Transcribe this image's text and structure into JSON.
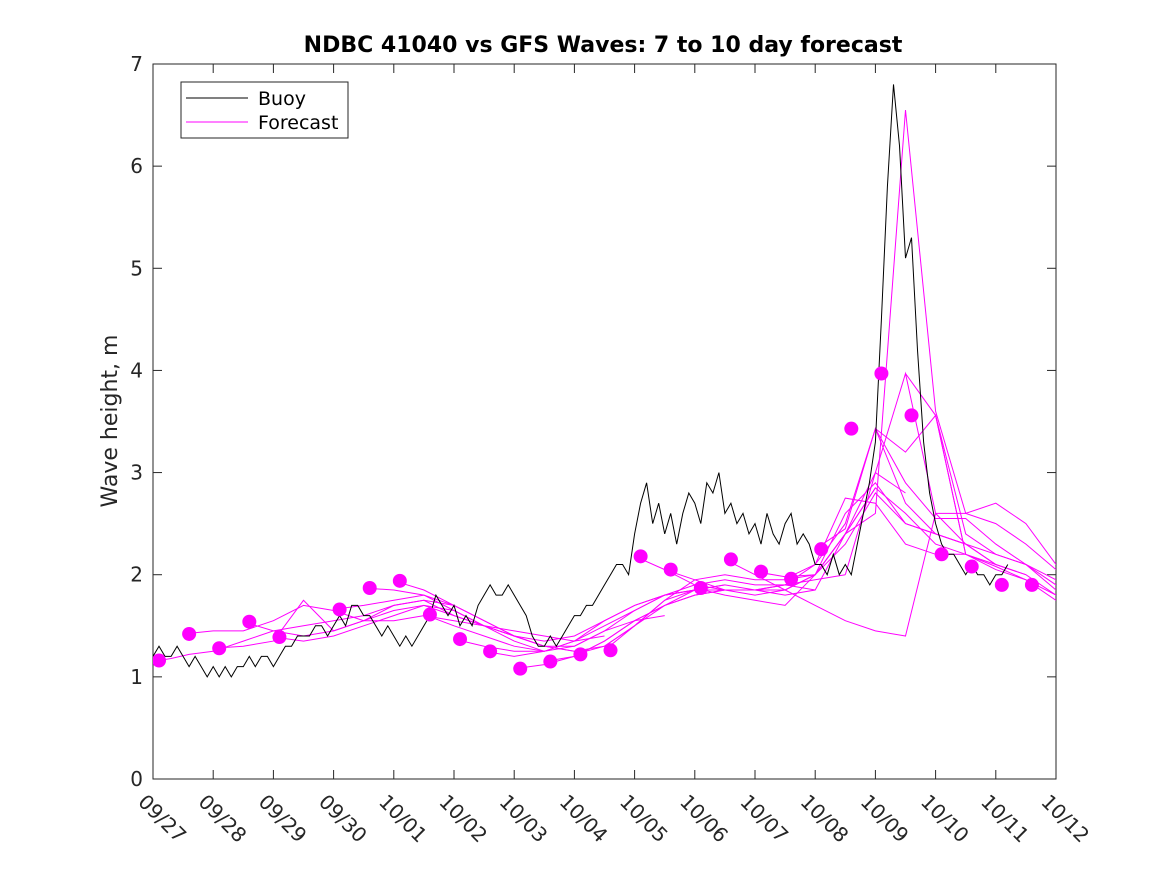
{
  "chart_data": {
    "type": "line",
    "title": "NDBC 41040 vs GFS Waves: 7 to 10 day forecast",
    "xlabel": "",
    "ylabel": "Wave height, m",
    "ylim": [
      0,
      7
    ],
    "xlim": [
      0,
      15
    ],
    "yticks": [
      0,
      1,
      2,
      3,
      4,
      5,
      6,
      7
    ],
    "xtick_labels": [
      "09/27",
      "09/28",
      "09/29",
      "09/30",
      "10/01",
      "10/02",
      "10/03",
      "10/04",
      "10/05",
      "10/06",
      "10/07",
      "10/08",
      "10/09",
      "10/10",
      "10/11",
      "10/12"
    ],
    "legend": {
      "position": "top-left",
      "entries": [
        "Buoy",
        "Forecast"
      ]
    },
    "colors": {
      "buoy": "#000000",
      "forecast": "#ff00ff",
      "axis": "#262626"
    },
    "series": [
      {
        "name": "Buoy",
        "x": [
          0.0,
          0.1,
          0.2,
          0.3,
          0.4,
          0.5,
          0.6,
          0.7,
          0.8,
          0.9,
          1.0,
          1.1,
          1.2,
          1.3,
          1.4,
          1.5,
          1.6,
          1.7,
          1.8,
          1.9,
          2.0,
          2.1,
          2.2,
          2.3,
          2.4,
          2.5,
          2.6,
          2.7,
          2.8,
          2.9,
          3.0,
          3.1,
          3.2,
          3.3,
          3.4,
          3.5,
          3.6,
          3.7,
          3.8,
          3.9,
          4.0,
          4.1,
          4.2,
          4.3,
          4.4,
          4.5,
          4.6,
          4.7,
          4.8,
          4.9,
          5.0,
          5.1,
          5.2,
          5.3,
          5.4,
          5.5,
          5.6,
          5.7,
          5.8,
          5.9,
          6.0,
          6.1,
          6.2,
          6.3,
          6.4,
          6.5,
          6.6,
          6.7,
          6.8,
          6.9,
          7.0,
          7.1,
          7.2,
          7.3,
          7.4,
          7.5,
          7.6,
          7.7,
          7.8,
          7.9,
          8.0,
          8.1,
          8.2,
          8.3,
          8.4,
          8.5,
          8.6,
          8.7,
          8.8,
          8.9,
          9.0,
          9.1,
          9.2,
          9.3,
          9.4,
          9.5,
          9.6,
          9.7,
          9.8,
          9.9,
          10.0,
          10.1,
          10.2,
          10.3,
          10.4,
          10.5,
          10.6,
          10.7,
          10.8,
          10.9,
          11.0,
          11.1,
          11.2,
          11.3,
          11.4,
          11.5,
          11.6,
          11.7,
          11.8,
          11.9,
          12.0,
          12.1,
          12.2,
          12.3,
          12.4,
          12.5,
          12.6,
          12.7,
          12.8,
          12.9,
          13.0,
          13.1,
          13.2,
          13.3,
          13.4,
          13.5,
          13.6,
          13.7,
          13.8,
          13.9,
          14.0,
          14.1,
          14.2
        ],
        "y": [
          1.2,
          1.3,
          1.2,
          1.2,
          1.3,
          1.2,
          1.1,
          1.2,
          1.1,
          1.0,
          1.1,
          1.0,
          1.1,
          1.0,
          1.1,
          1.1,
          1.2,
          1.1,
          1.2,
          1.2,
          1.1,
          1.2,
          1.3,
          1.3,
          1.4,
          1.4,
          1.4,
          1.5,
          1.5,
          1.4,
          1.5,
          1.6,
          1.5,
          1.7,
          1.7,
          1.6,
          1.6,
          1.5,
          1.4,
          1.5,
          1.4,
          1.3,
          1.4,
          1.3,
          1.4,
          1.5,
          1.6,
          1.8,
          1.7,
          1.6,
          1.7,
          1.5,
          1.6,
          1.5,
          1.7,
          1.8,
          1.9,
          1.8,
          1.8,
          1.9,
          1.8,
          1.7,
          1.6,
          1.4,
          1.3,
          1.3,
          1.4,
          1.3,
          1.4,
          1.5,
          1.6,
          1.6,
          1.7,
          1.7,
          1.8,
          1.9,
          2.0,
          2.1,
          2.1,
          2.0,
          2.4,
          2.7,
          2.9,
          2.5,
          2.7,
          2.4,
          2.6,
          2.3,
          2.6,
          2.8,
          2.7,
          2.5,
          2.9,
          2.8,
          3.0,
          2.6,
          2.7,
          2.5,
          2.6,
          2.4,
          2.5,
          2.3,
          2.6,
          2.4,
          2.3,
          2.5,
          2.6,
          2.3,
          2.4,
          2.3,
          2.1,
          2.1,
          2.0,
          2.2,
          2.0,
          2.1,
          2.0,
          2.3,
          2.6,
          2.9,
          3.3,
          4.5,
          5.8,
          6.8,
          6.2,
          5.1,
          5.3,
          4.2,
          3.3,
          2.8,
          2.5,
          2.3,
          2.2,
          2.2,
          2.1,
          2.0,
          2.1,
          2.0,
          2.0,
          1.9,
          2.0,
          2.0,
          2.1
        ]
      },
      {
        "name": "Forecast",
        "runs": [
          {
            "x": [
              0.0,
              0.3,
              0.6,
              1.0,
              1.5,
              2.0,
              2.5,
              3.0,
              3.5,
              4.0,
              4.5,
              5.0
            ],
            "y": [
              1.15,
              1.18,
              1.22,
              1.25,
              1.35,
              1.45,
              1.5,
              1.55,
              1.6,
              1.7,
              1.75,
              1.7
            ]
          },
          {
            "x": [
              0.5,
              1.0,
              1.5,
              2.0,
              2.5,
              3.0,
              3.5,
              4.0,
              4.5,
              5.0,
              5.5,
              6.0
            ],
            "y": [
              1.42,
              1.45,
              1.45,
              1.55,
              1.7,
              1.65,
              1.55,
              1.55,
              1.6,
              1.55,
              1.5,
              1.4
            ]
          },
          {
            "x": [
              1.0,
              1.5,
              2.0,
              2.5,
              3.0,
              3.5,
              4.0,
              4.5,
              5.0,
              5.5,
              6.0,
              6.5
            ],
            "y": [
              1.28,
              1.3,
              1.35,
              1.75,
              1.45,
              1.55,
              1.7,
              1.75,
              1.6,
              1.5,
              1.35,
              1.25
            ]
          },
          {
            "x": [
              1.5,
              2.0,
              2.5,
              3.0,
              3.5,
              4.0,
              4.5,
              5.0,
              5.5,
              6.0,
              6.5,
              7.0
            ],
            "y": [
              1.54,
              1.45,
              1.4,
              1.45,
              1.55,
              1.65,
              1.7,
              1.65,
              1.5,
              1.4,
              1.3,
              1.25
            ]
          },
          {
            "x": [
              2.0,
              2.5,
              3.0,
              3.5,
              4.0,
              4.5,
              5.0,
              5.5,
              6.0,
              6.5,
              7.0,
              7.5
            ],
            "y": [
              1.39,
              1.35,
              1.4,
              1.5,
              1.6,
              1.7,
              1.6,
              1.5,
              1.45,
              1.4,
              1.35,
              1.4
            ]
          },
          {
            "x": [
              3.0,
              3.5,
              4.0,
              4.5,
              5.0,
              5.5,
              6.0,
              6.5,
              7.0,
              7.5,
              8.0,
              8.5
            ],
            "y": [
              1.66,
              1.7,
              1.75,
              1.8,
              1.7,
              1.55,
              1.4,
              1.3,
              1.3,
              1.45,
              1.55,
              1.6
            ]
          },
          {
            "x": [
              3.5,
              4.0,
              4.5,
              5.0,
              5.5,
              6.0,
              6.5,
              7.0,
              7.5,
              8.0,
              8.5,
              9.0
            ],
            "y": [
              1.87,
              1.85,
              1.8,
              1.65,
              1.5,
              1.4,
              1.35,
              1.4,
              1.55,
              1.7,
              1.8,
              1.85
            ]
          },
          {
            "x": [
              4.0,
              4.5,
              5.0,
              5.5,
              6.0,
              6.5,
              7.0,
              7.5,
              8.0,
              8.5,
              9.0,
              9.5
            ],
            "y": [
              1.94,
              1.85,
              1.7,
              1.55,
              1.4,
              1.3,
              1.25,
              1.3,
              1.5,
              1.7,
              1.85,
              1.9
            ]
          },
          {
            "x": [
              4.5,
              5.0,
              5.5,
              6.0,
              6.5,
              7.0,
              7.5,
              8.0,
              8.5,
              9.0,
              9.5,
              10.0
            ],
            "y": [
              1.61,
              1.5,
              1.4,
              1.3,
              1.25,
              1.3,
              1.45,
              1.65,
              1.8,
              1.85,
              1.85,
              1.85
            ]
          },
          {
            "x": [
              5.0,
              5.5,
              6.0,
              6.5,
              7.0,
              7.5,
              8.0,
              8.5,
              9.0,
              9.5,
              10.0,
              10.5
            ],
            "y": [
              1.37,
              1.3,
              1.25,
              1.25,
              1.35,
              1.55,
              1.7,
              1.8,
              1.85,
              1.85,
              1.8,
              1.85
            ]
          },
          {
            "x": [
              5.5,
              6.0,
              6.5,
              7.0,
              7.5,
              8.0,
              8.5,
              9.0,
              9.5,
              10.0,
              10.5,
              11.0
            ],
            "y": [
              1.25,
              1.2,
              1.25,
              1.35,
              1.5,
              1.65,
              1.8,
              1.9,
              1.95,
              1.9,
              1.9,
              1.85
            ]
          },
          {
            "x": [
              6.0,
              6.5,
              7.0,
              7.5,
              8.0,
              8.5,
              9.0,
              9.5,
              10.0,
              10.5,
              11.0,
              11.5
            ],
            "y": [
              1.08,
              1.12,
              1.2,
              1.35,
              1.55,
              1.7,
              1.8,
              1.85,
              1.85,
              1.9,
              1.95,
              2.0
            ]
          },
          {
            "x": [
              6.5,
              7.0,
              7.5,
              8.0,
              8.5,
              9.0,
              9.5,
              10.0,
              10.5,
              11.0,
              11.5,
              12.0
            ],
            "y": [
              1.15,
              1.2,
              1.35,
              1.55,
              1.7,
              1.8,
              1.85,
              1.85,
              1.85,
              2.0,
              2.4,
              2.85
            ]
          },
          {
            "x": [
              7.0,
              7.5,
              8.0,
              8.5,
              9.0,
              9.5,
              10.0,
              10.5,
              11.0,
              11.5,
              12.0,
              12.5
            ],
            "y": [
              1.22,
              1.3,
              1.5,
              1.75,
              1.85,
              1.9,
              1.85,
              1.85,
              2.0,
              2.4,
              3.0,
              2.8
            ]
          },
          {
            "x": [
              7.5,
              8.0,
              8.5,
              9.0,
              9.5,
              10.0,
              10.5,
              11.0,
              11.5,
              12.0,
              12.5,
              13.0
            ],
            "y": [
              1.26,
              1.5,
              1.75,
              1.95,
              2.0,
              1.95,
              1.95,
              2.0,
              2.6,
              2.9,
              2.5,
              2.4
            ]
          },
          {
            "x": [
              8.0,
              8.5,
              9.0,
              9.5,
              10.0,
              10.5,
              11.0,
              11.5,
              12.0,
              12.5,
              13.0,
              13.5
            ],
            "y": [
              2.18,
              2.05,
              1.95,
              1.85,
              1.85,
              1.9,
              2.1,
              2.75,
              2.7,
              2.3,
              2.2,
              2.2
            ]
          },
          {
            "x": [
              8.5,
              9.0,
              9.5,
              10.0,
              10.5,
              11.0,
              11.5,
              12.0,
              12.5,
              13.0,
              13.5,
              14.0
            ],
            "y": [
              2.05,
              1.9,
              1.85,
              1.85,
              1.8,
              1.85,
              2.4,
              2.85,
              2.6,
              2.3,
              2.2,
              2.1
            ]
          },
          {
            "x": [
              9.0,
              9.5,
              10.0,
              10.5,
              11.0,
              11.5,
              12.0,
              12.5,
              13.0,
              13.5,
              14.0,
              14.5
            ],
            "y": [
              1.87,
              1.8,
              1.75,
              1.7,
              2.0,
              2.3,
              2.8,
              2.5,
              2.4,
              2.3,
              2.1,
              2.0
            ]
          },
          {
            "x": [
              9.5,
              10.0,
              10.5,
              11.0,
              11.5,
              12.0,
              12.5,
              13.0,
              13.5,
              14.0,
              14.5,
              15.0
            ],
            "y": [
              2.15,
              2.0,
              1.85,
              1.7,
              1.55,
              1.45,
              1.4,
              2.6,
              2.6,
              2.5,
              2.3,
              2.05
            ]
          },
          {
            "x": [
              10.0,
              10.5,
              11.0,
              11.5,
              12.0,
              12.5,
              13.0,
              13.5,
              14.0,
              14.5,
              15.0
            ],
            "y": [
              2.03,
              1.98,
              2.0,
              2.4,
              2.6,
              6.55,
              3.6,
              2.6,
              2.7,
              2.5,
              2.1
            ]
          },
          {
            "x": [
              10.5,
              11.0,
              11.5,
              12.0,
              12.5,
              13.0,
              13.5,
              14.0,
              14.5,
              15.0
            ],
            "y": [
              1.96,
              2.1,
              2.5,
              3.43,
              2.9,
              2.55,
              2.55,
              2.3,
              2.1,
              1.95
            ]
          },
          {
            "x": [
              11.0,
              11.5,
              12.0,
              12.5,
              13.0,
              13.5,
              14.0,
              14.5,
              15.0
            ],
            "y": [
              2.25,
              2.45,
              3.43,
              2.7,
              2.4,
              2.3,
              2.2,
              2.1,
              1.85
            ]
          },
          {
            "x": [
              11.5,
              12.0,
              12.5,
              13.0,
              13.5,
              14.0,
              14.5,
              15.0
            ],
            "y": [
              2.0,
              3.0,
              3.97,
              2.6,
              2.3,
              2.1,
              2.0,
              1.8
            ]
          },
          {
            "x": [
              12.0,
              12.5,
              13.0,
              13.5,
              14.0,
              14.5,
              15.0
            ],
            "y": [
              3.43,
              3.2,
              3.56,
              2.2,
              2.05,
              1.95,
              1.75
            ]
          },
          {
            "x": [
              12.5,
              13.0,
              13.5,
              14.0,
              14.5,
              15.0
            ],
            "y": [
              3.97,
              3.56,
              2.4,
              2.2,
              2.1,
              1.9
            ]
          },
          {
            "x": [
              13.0,
              13.5,
              14.0,
              14.5,
              15.0
            ],
            "y": [
              3.56,
              2.2,
              2.08,
              1.95,
              1.8
            ]
          }
        ],
        "markers": {
          "x": [
            0.1,
            0.6,
            1.1,
            1.6,
            2.1,
            3.1,
            3.6,
            4.1,
            4.6,
            5.1,
            5.6,
            6.1,
            6.6,
            7.1,
            7.6,
            8.1,
            8.6,
            9.1,
            9.6,
            10.1,
            10.6,
            11.1,
            11.6,
            12.1,
            12.6,
            13.1,
            13.6,
            14.1,
            14.6
          ],
          "y": [
            1.16,
            1.42,
            1.28,
            1.54,
            1.39,
            1.66,
            1.87,
            1.94,
            1.61,
            1.37,
            1.25,
            1.08,
            1.15,
            1.22,
            1.26,
            2.18,
            2.05,
            1.87,
            2.15,
            2.03,
            1.96,
            2.25,
            3.43,
            3.97,
            3.56,
            2.2,
            2.08,
            1.9,
            1.9
          ]
        }
      }
    ]
  }
}
